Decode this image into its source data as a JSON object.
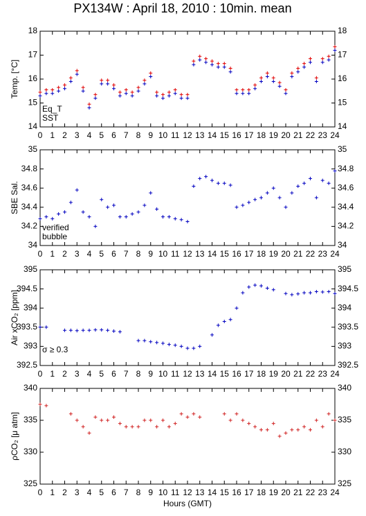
{
  "title": "PX134W : April 18, 2010 : 10min. mean",
  "chart_data": [
    {
      "type": "scatter",
      "ylabel": "Temp. [°C]",
      "xlim": [
        0,
        24
      ],
      "xticks": [
        0,
        1,
        2,
        3,
        4,
        5,
        6,
        7,
        8,
        9,
        10,
        11,
        12,
        13,
        14,
        15,
        16,
        17,
        18,
        19,
        20,
        21,
        22,
        23,
        24
      ],
      "ylim": [
        14,
        18
      ],
      "yticks": [
        14,
        15,
        16,
        17,
        18
      ],
      "x": [
        0,
        0.5,
        1,
        1.5,
        2,
        2.5,
        3,
        3.5,
        4,
        4.5,
        5,
        5.5,
        6,
        6.5,
        7,
        7.5,
        8,
        8.5,
        9,
        9.5,
        10,
        10.5,
        11,
        11.5,
        12,
        12.5,
        13,
        13.5,
        14,
        14.5,
        15,
        15.5,
        16,
        16.5,
        17,
        17.5,
        18,
        18.5,
        19,
        19.5,
        20,
        20.5,
        21,
        21.5,
        22,
        22.5,
        23,
        23.5,
        24
      ],
      "series": [
        {
          "name": "Eq_T",
          "color": "#e00000",
          "values": [
            15.45,
            15.55,
            15.55,
            15.65,
            15.75,
            16.05,
            16.35,
            15.65,
            14.95,
            15.35,
            15.95,
            15.95,
            15.75,
            15.45,
            15.55,
            15.45,
            15.65,
            15.95,
            16.25,
            15.45,
            15.35,
            15.45,
            15.55,
            15.35,
            15.35,
            16.75,
            16.95,
            16.85,
            16.75,
            16.65,
            16.65,
            16.45,
            15.55,
            15.55,
            15.55,
            15.75,
            16.05,
            16.25,
            16.05,
            15.85,
            15.55,
            16.25,
            16.45,
            16.65,
            16.85,
            16.05,
            16.85,
            16.95,
            17.35
          ]
        },
        {
          "name": "SST",
          "color": "#0000c0",
          "values": [
            15.3,
            15.4,
            15.4,
            15.5,
            15.6,
            15.9,
            16.2,
            15.5,
            14.8,
            15.2,
            15.8,
            15.8,
            15.6,
            15.3,
            15.4,
            15.3,
            15.5,
            15.8,
            16.1,
            15.3,
            15.2,
            15.3,
            15.4,
            15.2,
            15.2,
            16.6,
            16.8,
            16.7,
            16.6,
            16.5,
            16.5,
            16.3,
            15.4,
            15.4,
            15.4,
            15.6,
            15.9,
            16.1,
            15.9,
            15.7,
            15.4,
            16.1,
            16.3,
            16.5,
            16.7,
            15.9,
            16.7,
            16.8,
            17.2
          ]
        }
      ]
    },
    {
      "type": "scatter",
      "ylabel": "SBE Sal.",
      "xlim": [
        0,
        24
      ],
      "xticks": [
        0,
        1,
        2,
        3,
        4,
        5,
        6,
        7,
        8,
        9,
        10,
        11,
        12,
        13,
        14,
        15,
        16,
        17,
        18,
        19,
        20,
        21,
        22,
        23,
        24
      ],
      "ylim": [
        34,
        35
      ],
      "yticks": [
        34,
        34.2,
        34.4,
        34.6,
        34.8,
        35
      ],
      "x": [
        0,
        0.5,
        1,
        1.5,
        2,
        2.5,
        3,
        3.5,
        4,
        4.5,
        5,
        5.5,
        6,
        6.5,
        7,
        7.5,
        8,
        8.5,
        9,
        9.5,
        10,
        10.5,
        11,
        11.5,
        12,
        12.5,
        13,
        13.5,
        14,
        14.5,
        15,
        15.5,
        16,
        16.5,
        17,
        17.5,
        18,
        18.5,
        19,
        19.5,
        20,
        20.5,
        21,
        21.5,
        22,
        22.5,
        23,
        23.5,
        24
      ],
      "series": [
        {
          "name": "verified",
          "color": "#0000c0",
          "values": [
            34.28,
            34.3,
            34.28,
            34.33,
            34.35,
            34.45,
            34.58,
            34.35,
            34.3,
            34.2,
            34.48,
            34.4,
            34.42,
            34.3,
            34.3,
            34.33,
            34.35,
            34.42,
            34.55,
            34.38,
            34.3,
            34.3,
            34.28,
            34.27,
            34.25,
            34.62,
            34.7,
            34.72,
            34.68,
            34.65,
            34.65,
            34.63,
            34.4,
            34.42,
            34.45,
            34.48,
            34.5,
            34.55,
            34.6,
            34.5,
            34.4,
            34.55,
            34.62,
            34.65,
            34.7,
            34.5,
            34.68,
            34.65,
            34.78
          ]
        },
        {
          "name": "bubble",
          "color": "#c000c0",
          "values": []
        }
      ]
    },
    {
      "type": "scatter",
      "ylabel": "Air xCO₂ [ppm]",
      "annotation": "σ ≥ 0.3",
      "annotation_color": "#c000c0",
      "xlim": [
        0,
        24
      ],
      "xticks": [
        0,
        1,
        2,
        3,
        4,
        5,
        6,
        7,
        8,
        9,
        10,
        11,
        12,
        13,
        14,
        15,
        16,
        17,
        18,
        19,
        20,
        21,
        22,
        23,
        24
      ],
      "ylim": [
        392.5,
        395
      ],
      "yticks": [
        392.5,
        393,
        393.5,
        394,
        394.5,
        395
      ],
      "x": [
        0,
        0.5,
        1,
        1.5,
        2,
        2.5,
        3,
        3.5,
        4,
        4.5,
        5,
        5.5,
        6,
        6.5,
        7,
        7.5,
        8,
        8.5,
        9,
        9.5,
        10,
        10.5,
        11,
        11.5,
        12,
        12.5,
        13,
        13.5,
        14,
        14.5,
        15,
        15.5,
        16,
        16.5,
        17,
        17.5,
        18,
        18.5,
        19,
        19.5,
        20,
        20.5,
        21,
        21.5,
        22,
        22.5,
        23,
        23.5,
        24
      ],
      "series": [
        {
          "name": "xCO2",
          "color": "#0000c0",
          "values": [
            393.5,
            393.5,
            null,
            null,
            393.42,
            393.42,
            393.41,
            393.42,
            393.42,
            393.43,
            393.43,
            393.42,
            393.4,
            393.38,
            null,
            null,
            393.15,
            393.15,
            393.12,
            393.1,
            393.08,
            393.05,
            393.03,
            393.0,
            392.95,
            392.95,
            393.0,
            null,
            393.3,
            393.55,
            393.65,
            393.7,
            394.0,
            394.4,
            394.55,
            394.6,
            394.58,
            394.52,
            394.48,
            null,
            394.38,
            394.35,
            394.37,
            394.4,
            394.4,
            394.43,
            394.42,
            394.43,
            394.38
          ]
        }
      ]
    },
    {
      "type": "scatter",
      "ylabel": "ρCO₂ [μ atm]",
      "xlabel": "Hours (GMT)",
      "xlim": [
        0,
        24
      ],
      "xticks": [
        0,
        1,
        2,
        3,
        4,
        5,
        6,
        7,
        8,
        9,
        10,
        11,
        12,
        13,
        14,
        15,
        16,
        17,
        18,
        19,
        20,
        21,
        22,
        23,
        24
      ],
      "ylim": [
        325,
        340
      ],
      "yticks": [
        325,
        330,
        335,
        340
      ],
      "x": [
        0,
        0.5,
        1,
        1.5,
        2,
        2.5,
        3,
        3.5,
        4,
        4.5,
        5,
        5.5,
        6,
        6.5,
        7,
        7.5,
        8,
        8.5,
        9,
        9.5,
        10,
        10.5,
        11,
        11.5,
        12,
        12.5,
        13,
        13.5,
        14,
        14.5,
        15,
        15.5,
        16,
        16.5,
        17,
        17.5,
        18,
        18.5,
        19,
        19.5,
        20,
        20.5,
        21,
        21.5,
        22,
        22.5,
        23,
        23.5,
        24
      ],
      "series": [
        {
          "name": "pCO2",
          "color": "#d02020",
          "values": [
            337.5,
            337.3,
            null,
            null,
            null,
            336,
            335,
            334,
            333,
            335.5,
            335,
            335,
            335.5,
            334.5,
            334,
            334,
            334,
            335,
            335,
            334,
            335,
            334,
            334.5,
            336,
            335.5,
            336,
            335.5,
            null,
            null,
            null,
            336,
            335,
            336,
            335,
            334.5,
            334,
            333.5,
            333.5,
            334.5,
            332.5,
            333,
            333.5,
            333.5,
            334,
            333.5,
            335,
            334,
            336,
            335
          ]
        }
      ]
    }
  ]
}
